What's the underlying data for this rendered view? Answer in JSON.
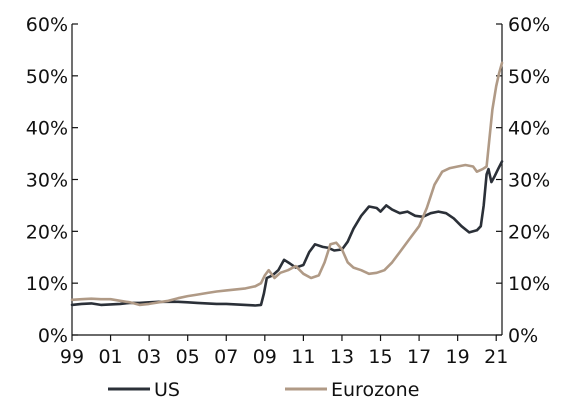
{
  "chart_data": {
    "type": "line",
    "x_ticks": [
      "99",
      "01",
      "03",
      "05",
      "07",
      "09",
      "11",
      "13",
      "15",
      "17",
      "19",
      "21"
    ],
    "y_ticks": [
      "0%",
      "10%",
      "20%",
      "30%",
      "40%",
      "50%",
      "60%"
    ],
    "ylim": [
      0,
      60
    ],
    "xlim": [
      1999,
      2021.3
    ],
    "grid": false,
    "legend_position": "bottom",
    "colors": {
      "US": "#2b3038",
      "Eurozone": "#b09a86",
      "axis": "#111111"
    },
    "series": [
      {
        "name": "US",
        "color": "#2b3038",
        "points": [
          [
            1999.0,
            5.8
          ],
          [
            1999.5,
            6.0
          ],
          [
            2000.0,
            6.1
          ],
          [
            2000.5,
            5.8
          ],
          [
            2001.0,
            5.9
          ],
          [
            2001.5,
            6.0
          ],
          [
            2002.0,
            6.2
          ],
          [
            2002.5,
            6.2
          ],
          [
            2003.0,
            6.3
          ],
          [
            2003.5,
            6.4
          ],
          [
            2004.0,
            6.4
          ],
          [
            2004.5,
            6.4
          ],
          [
            2005.0,
            6.3
          ],
          [
            2005.5,
            6.2
          ],
          [
            2006.0,
            6.1
          ],
          [
            2006.5,
            6.0
          ],
          [
            2007.0,
            6.0
          ],
          [
            2007.5,
            5.9
          ],
          [
            2008.0,
            5.8
          ],
          [
            2008.5,
            5.7
          ],
          [
            2008.8,
            5.8
          ],
          [
            2008.95,
            8.0
          ],
          [
            2009.1,
            11.0
          ],
          [
            2009.4,
            11.5
          ],
          [
            2009.7,
            12.5
          ],
          [
            2010.0,
            14.5
          ],
          [
            2010.3,
            13.8
          ],
          [
            2010.6,
            13.0
          ],
          [
            2011.0,
            13.5
          ],
          [
            2011.3,
            16.0
          ],
          [
            2011.6,
            17.5
          ],
          [
            2012.0,
            17.0
          ],
          [
            2012.3,
            16.8
          ],
          [
            2012.6,
            16.3
          ],
          [
            2013.0,
            16.5
          ],
          [
            2013.3,
            18.0
          ],
          [
            2013.6,
            20.5
          ],
          [
            2014.0,
            23.0
          ],
          [
            2014.4,
            24.8
          ],
          [
            2014.8,
            24.5
          ],
          [
            2015.0,
            23.8
          ],
          [
            2015.3,
            25.0
          ],
          [
            2015.6,
            24.2
          ],
          [
            2016.0,
            23.5
          ],
          [
            2016.4,
            23.8
          ],
          [
            2016.8,
            23.0
          ],
          [
            2017.2,
            22.8
          ],
          [
            2017.6,
            23.5
          ],
          [
            2018.0,
            23.8
          ],
          [
            2018.4,
            23.5
          ],
          [
            2018.8,
            22.5
          ],
          [
            2019.2,
            21.0
          ],
          [
            2019.6,
            19.8
          ],
          [
            2020.0,
            20.2
          ],
          [
            2020.2,
            21.0
          ],
          [
            2020.35,
            25.0
          ],
          [
            2020.5,
            31.0
          ],
          [
            2020.6,
            32.0
          ],
          [
            2020.75,
            29.5
          ],
          [
            2020.9,
            30.5
          ],
          [
            2021.1,
            32.0
          ],
          [
            2021.3,
            33.5
          ]
        ]
      },
      {
        "name": "Eurozone",
        "color": "#b09a86",
        "points": [
          [
            1999.0,
            6.8
          ],
          [
            1999.5,
            6.9
          ],
          [
            2000.0,
            7.0
          ],
          [
            2000.5,
            6.9
          ],
          [
            2001.0,
            6.9
          ],
          [
            2001.5,
            6.6
          ],
          [
            2002.0,
            6.3
          ],
          [
            2002.5,
            5.8
          ],
          [
            2003.0,
            6.0
          ],
          [
            2003.5,
            6.3
          ],
          [
            2004.0,
            6.6
          ],
          [
            2004.5,
            7.1
          ],
          [
            2005.0,
            7.5
          ],
          [
            2005.5,
            7.8
          ],
          [
            2006.0,
            8.1
          ],
          [
            2006.5,
            8.4
          ],
          [
            2007.0,
            8.6
          ],
          [
            2007.5,
            8.8
          ],
          [
            2008.0,
            9.0
          ],
          [
            2008.5,
            9.4
          ],
          [
            2008.8,
            10.0
          ],
          [
            2009.0,
            11.5
          ],
          [
            2009.2,
            12.5
          ],
          [
            2009.5,
            11.0
          ],
          [
            2009.8,
            12.0
          ],
          [
            2010.2,
            12.5
          ],
          [
            2010.6,
            13.3
          ],
          [
            2011.0,
            11.8
          ],
          [
            2011.4,
            11.0
          ],
          [
            2011.8,
            11.5
          ],
          [
            2012.1,
            14.0
          ],
          [
            2012.4,
            17.5
          ],
          [
            2012.7,
            17.8
          ],
          [
            2013.0,
            16.5
          ],
          [
            2013.3,
            14.0
          ],
          [
            2013.6,
            13.0
          ],
          [
            2014.0,
            12.5
          ],
          [
            2014.4,
            11.8
          ],
          [
            2014.8,
            12.0
          ],
          [
            2015.2,
            12.5
          ],
          [
            2015.6,
            14.0
          ],
          [
            2016.0,
            16.0
          ],
          [
            2016.5,
            18.5
          ],
          [
            2017.0,
            21.0
          ],
          [
            2017.4,
            24.5
          ],
          [
            2017.8,
            29.0
          ],
          [
            2018.2,
            31.5
          ],
          [
            2018.6,
            32.2
          ],
          [
            2019.0,
            32.5
          ],
          [
            2019.4,
            32.8
          ],
          [
            2019.8,
            32.5
          ],
          [
            2020.0,
            31.5
          ],
          [
            2020.3,
            32.0
          ],
          [
            2020.5,
            32.5
          ],
          [
            2020.65,
            38.0
          ],
          [
            2020.8,
            43.5
          ],
          [
            2021.0,
            48.0
          ],
          [
            2021.15,
            50.5
          ],
          [
            2021.3,
            52.5
          ]
        ]
      }
    ]
  }
}
